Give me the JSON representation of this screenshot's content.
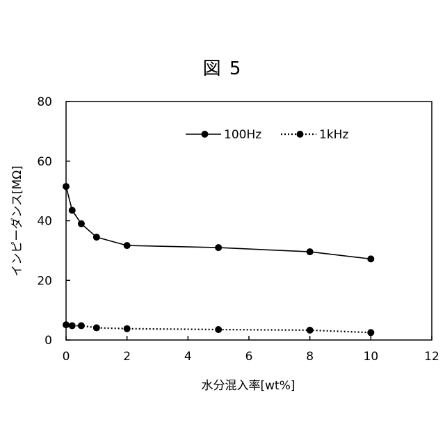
{
  "figure": {
    "title": "図 5"
  },
  "chart_data": {
    "type": "line",
    "xlabel": "水分混入率[wt%]",
    "ylabel": "インピーダンス[MΩ]",
    "xlim": [
      0,
      12
    ],
    "ylim": [
      0,
      80
    ],
    "xticks": [
      "0",
      "2",
      "4",
      "6",
      "8",
      "10",
      "12"
    ],
    "yticks": [
      "0",
      "20",
      "40",
      "60",
      "80"
    ],
    "grid": false,
    "legend_position": "top-right",
    "series": [
      {
        "name": "100Hz",
        "line_style": "solid",
        "color": "#000000",
        "x": [
          0,
          0.2,
          0.5,
          1,
          2,
          5,
          8,
          10
        ],
        "y": [
          51.5,
          43.5,
          39,
          34.5,
          31.7,
          31,
          29.6,
          27.2
        ]
      },
      {
        "name": "1kHz",
        "line_style": "dotted",
        "color": "#000000",
        "x": [
          0,
          0.2,
          0.5,
          1,
          2,
          5,
          8,
          10
        ],
        "y": [
          5.1,
          4.8,
          4.8,
          4.1,
          3.8,
          3.5,
          3.3,
          2.5
        ]
      }
    ]
  }
}
